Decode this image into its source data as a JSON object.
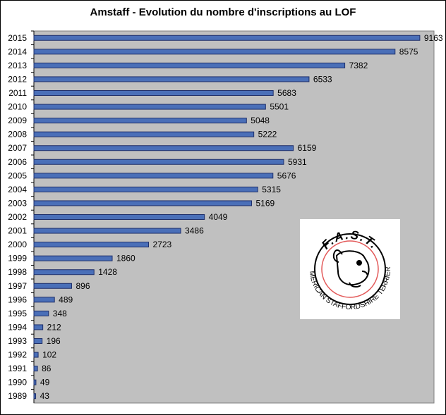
{
  "chart_data": {
    "type": "bar",
    "orientation": "horizontal",
    "title": "Amstaff - Evolution du nombre d'inscriptions au LOF",
    "xlabel": "",
    "ylabel": "",
    "xlim": [
      0,
      9500
    ],
    "grid": false,
    "legend": "none",
    "colors": {
      "bar_fill": "#4a6fb8",
      "bar_stroke": "#1f2f6a",
      "plot_bg": "#c0c0c0"
    },
    "categories": [
      "2015",
      "2014",
      "2013",
      "2012",
      "2011",
      "2010",
      "2009",
      "2008",
      "2007",
      "2006",
      "2005",
      "2004",
      "2003",
      "2002",
      "2001",
      "2000",
      "1999",
      "1998",
      "1997",
      "1996",
      "1995",
      "1994",
      "1993",
      "1992",
      "1991",
      "1990",
      "1989"
    ],
    "values": [
      9163,
      8575,
      7382,
      6533,
      5683,
      5501,
      5048,
      5222,
      6159,
      5931,
      5676,
      5315,
      5169,
      4049,
      3486,
      2723,
      1860,
      1428,
      896,
      489,
      348,
      212,
      196,
      102,
      86,
      49,
      43
    ]
  },
  "logo": {
    "top_text": "F.A.S.T.",
    "bottom_text": "AMERICAN STAFFORDSHIRE TERRIER",
    "icon": "dog-head-icon"
  }
}
